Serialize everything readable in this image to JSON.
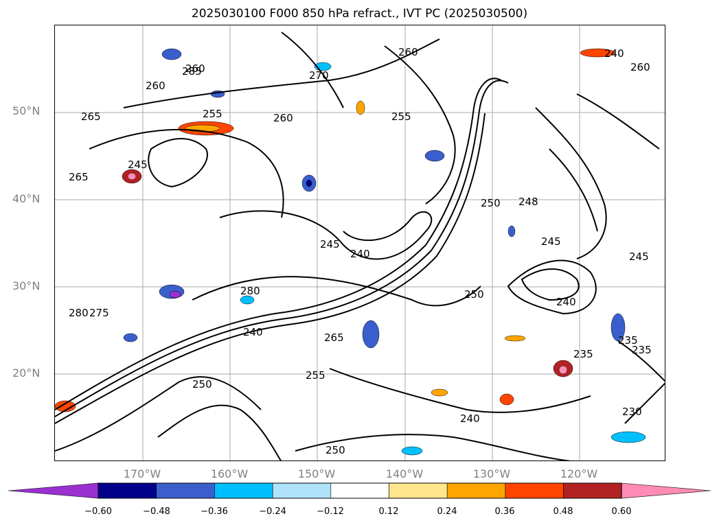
{
  "title": "2025030100 F000 850 hPa refract., IVT PC (2025030500)",
  "lat_labels": [
    "50°N",
    "40°N",
    "30°N",
    "20°N"
  ],
  "lon_labels": [
    "170°W",
    "160°W",
    "150°W",
    "140°W",
    "130°W",
    "120°W"
  ],
  "colorbar": {
    "ticks": [
      "−0.60",
      "−0.48",
      "−0.36",
      "−0.24",
      "−0.12",
      "0.12",
      "0.24",
      "0.36",
      "0.48",
      "0.60"
    ],
    "colors": [
      "#9a30d0",
      "#00008b",
      "#3a5fcd",
      "#00bfff",
      "#aee3fa",
      "#ffffff",
      "#ffe68c",
      "#ffa500",
      "#ff4500",
      "#b22222",
      "#ff8cb4"
    ]
  },
  "contour_labels": [
    "260",
    "270",
    "285",
    "255",
    "260",
    "265",
    "260",
    "245",
    "265",
    "255",
    "245",
    "240",
    "260",
    "250",
    "248",
    "245",
    "245",
    "240",
    "250",
    "275",
    "280",
    "240",
    "265",
    "235",
    "235",
    "235",
    "255",
    "250",
    "240",
    "230",
    "250",
    "240",
    "280",
    "260"
  ]
}
